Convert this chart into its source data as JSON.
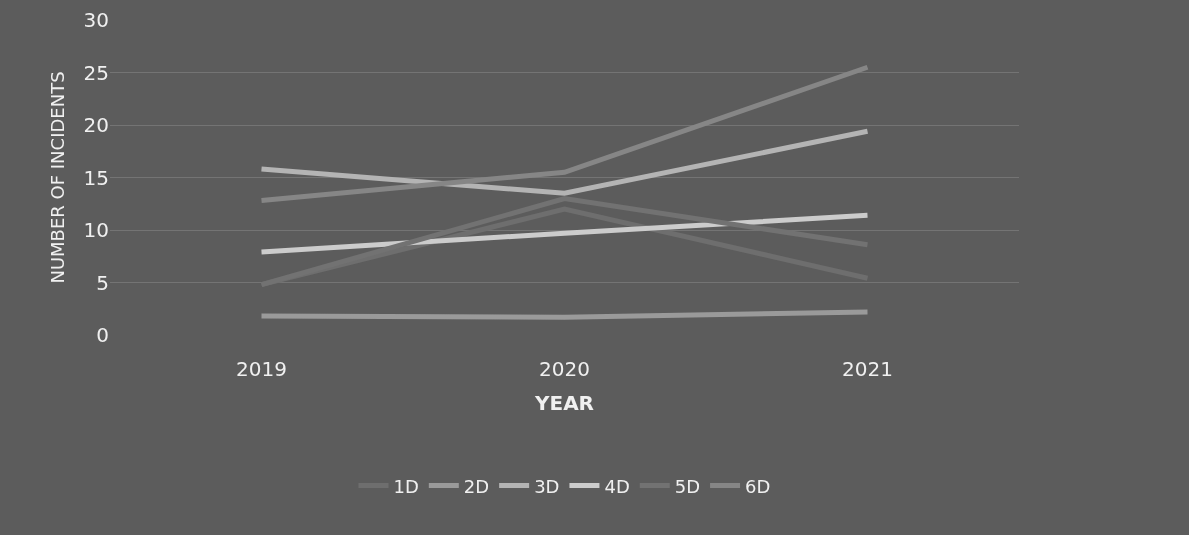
{
  "chart_data": {
    "type": "line",
    "xlabel": "YEAR",
    "ylabel": "NUMBER OF INCIDENTS",
    "categories": [
      "2019",
      "2020",
      "2021"
    ],
    "ylim": [
      0,
      30
    ],
    "yticks": [
      0,
      5,
      10,
      15,
      20,
      25,
      30
    ],
    "grid": "y",
    "legend": "bottom",
    "marker": "none",
    "line_style": "solid",
    "series": [
      {
        "name": "1D",
        "color": "#6e6e6e",
        "values": [
          4.8,
          12,
          5.4
        ]
      },
      {
        "name": "2D",
        "color": "#9a9a9a",
        "values": [
          1.8,
          1.7,
          2.2
        ]
      },
      {
        "name": "3D",
        "color": "#b4b4b4",
        "values": [
          15.8,
          13.5,
          19.4
        ]
      },
      {
        "name": "4D",
        "color": "#cccccc",
        "values": [
          7.9,
          9.7,
          11.4
        ]
      },
      {
        "name": "5D",
        "color": "#727272",
        "values": [
          4.8,
          13,
          8.6
        ]
      },
      {
        "name": "6D",
        "color": "#868686",
        "values": [
          12.8,
          15.5,
          25.5
        ]
      }
    ]
  }
}
